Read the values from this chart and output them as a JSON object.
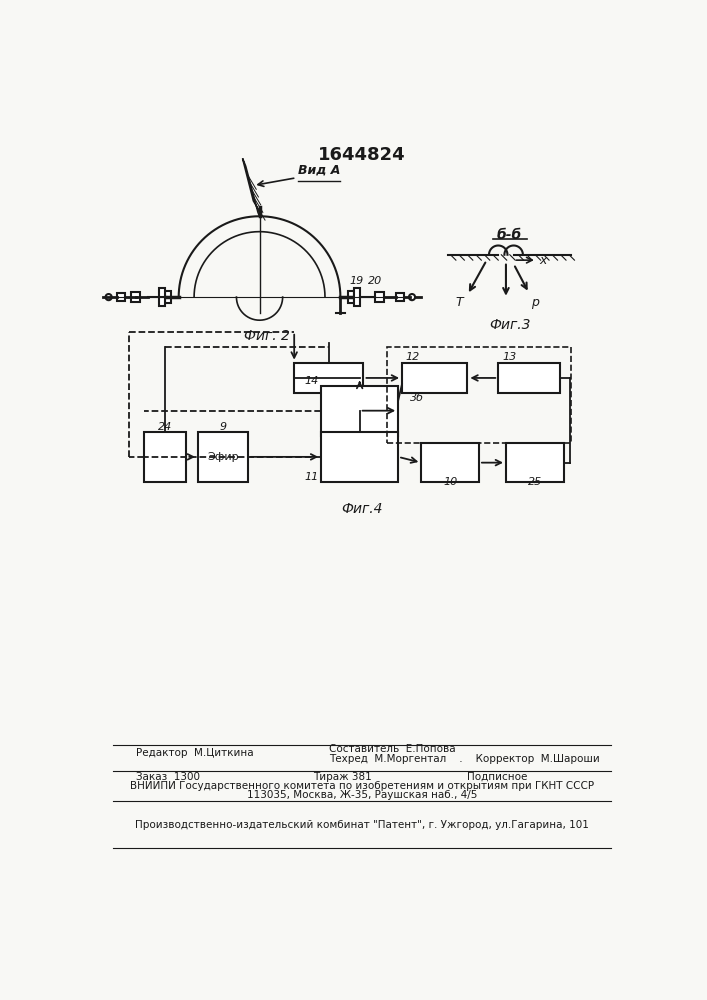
{
  "patent_number": "1644824",
  "fig2_label": "Фиг. 2",
  "fig3_label": "Фиг.3",
  "fig4_label": "Фиг.4",
  "vid_a_label": "Вид А",
  "bb_label": "б-б",
  "editor_line": "Редактор  М.Циткина",
  "composer_line1": "Составитель  Е.Попова",
  "composer_line2": "Техред  М.Моргентал    .    Корректор  М.Шароши",
  "order_label": "Заказ  1300",
  "tirazh_label": "Тираж 381",
  "podpisnoe_label": "Подписное",
  "vniipи_line1": "ВНИИПИ Государственного комитета по изобретениям и открытиям при ГКНТ СССР",
  "vniipи_line2": "113035, Москва, Ж-35, Раушская наб., 4/5",
  "publisher_line": "Производственно-издательский комбинат \"Патент\", г. Ужгород, ул.Гагарина, 101",
  "bg_color": "#f8f8f5",
  "line_color": "#1a1a1a"
}
